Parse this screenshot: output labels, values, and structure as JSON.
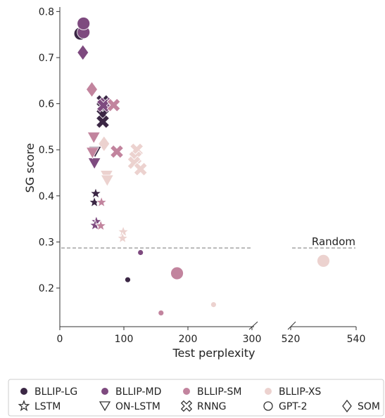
{
  "chart_data": {
    "type": "scatter",
    "xlabel": "Test perplexity",
    "ylabel": "SG score",
    "ylim": [
      0.11,
      0.81
    ],
    "broken_x_axis": true,
    "x_segments": [
      {
        "range": [
          0,
          300
        ],
        "ticks": [
          0,
          100,
          200,
          300
        ]
      },
      {
        "range": [
          520,
          540
        ],
        "ticks": [
          520,
          540
        ]
      }
    ],
    "yticks": [
      0.2,
      0.3,
      0.4,
      0.5,
      0.6,
      0.7,
      0.8
    ],
    "ytick_labels": [
      "0.2",
      "0.3",
      "0.4",
      "0.5",
      "0.6",
      "0.7",
      "0.8"
    ],
    "grid": false,
    "annotations": [
      {
        "text": "Random",
        "type": "hline",
        "y": 0.287
      }
    ],
    "corpus_colors": {
      "BLLIP-LG": "#3b2745",
      "BLLIP-MD": "#7e4a7f",
      "BLLIP-SM": "#c2849e",
      "BLLIP-XS": "#ecd2cf"
    },
    "legend": {
      "placement": "bottom",
      "corpora": [
        "BLLIP-LG",
        "BLLIP-MD",
        "BLLIP-SM",
        "BLLIP-XS"
      ],
      "architectures": [
        "LSTM",
        "ON-LSTM",
        "RNNG",
        "GPT-2",
        "SOM"
      ]
    },
    "series": [
      {
        "corpus": "BLLIP-LG",
        "architecture": "GPT-2",
        "points": [
          [
            32,
            0.752
          ]
        ]
      },
      {
        "corpus": "BLLIP-MD",
        "architecture": "GPT-2",
        "points": [
          [
            37,
            0.755
          ],
          [
            37,
            0.774
          ]
        ]
      },
      {
        "corpus": "BLLIP-SM",
        "architecture": "GPT-2",
        "points": [
          [
            183,
            0.232
          ]
        ]
      },
      {
        "corpus": "BLLIP-XS",
        "architecture": "GPT-2",
        "points": [
          [
            530,
            0.259
          ]
        ]
      },
      {
        "corpus": "BLLIP-MD",
        "architecture": "SOM",
        "points": [
          [
            36,
            0.711
          ]
        ]
      },
      {
        "corpus": "BLLIP-SM",
        "architecture": "SOM",
        "points": [
          [
            50,
            0.631
          ]
        ]
      },
      {
        "corpus": "BLLIP-XS",
        "architecture": "SOM",
        "points": [
          [
            69,
            0.513
          ]
        ]
      },
      {
        "corpus": "BLLIP-LG",
        "architecture": "RNNG",
        "points": [
          [
            67,
            0.605
          ],
          [
            67,
            0.592
          ],
          [
            67,
            0.576
          ],
          [
            67,
            0.561
          ]
        ]
      },
      {
        "corpus": "BLLIP-MD",
        "architecture": "RNNG",
        "points": [
          [
            71,
            0.6
          ],
          [
            68,
            0.596
          ]
        ]
      },
      {
        "corpus": "BLLIP-SM",
        "architecture": "RNNG",
        "points": [
          [
            84,
            0.597
          ],
          [
            89,
            0.496
          ]
        ]
      },
      {
        "corpus": "BLLIP-XS",
        "architecture": "RNNG",
        "points": [
          [
            120,
            0.5
          ],
          [
            118,
            0.483
          ],
          [
            116,
            0.472
          ],
          [
            126,
            0.458
          ]
        ]
      },
      {
        "corpus": "BLLIP-LG",
        "architecture": "ON-LSTM",
        "points": [
          [
            55,
            0.495
          ]
        ]
      },
      {
        "corpus": "BLLIP-MD",
        "architecture": "ON-LSTM",
        "points": [
          [
            54,
            0.47
          ]
        ]
      },
      {
        "corpus": "BLLIP-SM",
        "architecture": "ON-LSTM",
        "points": [
          [
            53,
            0.526
          ],
          [
            51,
            0.493
          ]
        ]
      },
      {
        "corpus": "BLLIP-XS",
        "architecture": "ON-LSTM",
        "points": [
          [
            73,
            0.443
          ],
          [
            74,
            0.433
          ]
        ]
      },
      {
        "corpus": "BLLIP-LG",
        "architecture": "LSTM",
        "points": [
          [
            56,
            0.405
          ],
          [
            54,
            0.386
          ]
        ]
      },
      {
        "corpus": "BLLIP-MD",
        "architecture": "LSTM",
        "points": [
          [
            57,
            0.344
          ],
          [
            55,
            0.336
          ]
        ]
      },
      {
        "corpus": "BLLIP-SM",
        "architecture": "LSTM",
        "points": [
          [
            65,
            0.386
          ],
          [
            64,
            0.335
          ]
        ]
      },
      {
        "corpus": "BLLIP-XS",
        "architecture": "LSTM",
        "points": [
          [
            99,
            0.322
          ],
          [
            98,
            0.308
          ]
        ]
      },
      {
        "corpus": "BLLIP-LG",
        "architecture": "small-circle",
        "points": [
          [
            106,
            0.218
          ]
        ]
      },
      {
        "corpus": "BLLIP-MD",
        "architecture": "small-circle",
        "points": [
          [
            126,
            0.277
          ]
        ]
      },
      {
        "corpus": "BLLIP-SM",
        "architecture": "small-circle",
        "points": [
          [
            158,
            0.146
          ]
        ]
      },
      {
        "corpus": "BLLIP-XS",
        "architecture": "small-circle",
        "points": [
          [
            240,
            0.164
          ]
        ]
      }
    ]
  }
}
